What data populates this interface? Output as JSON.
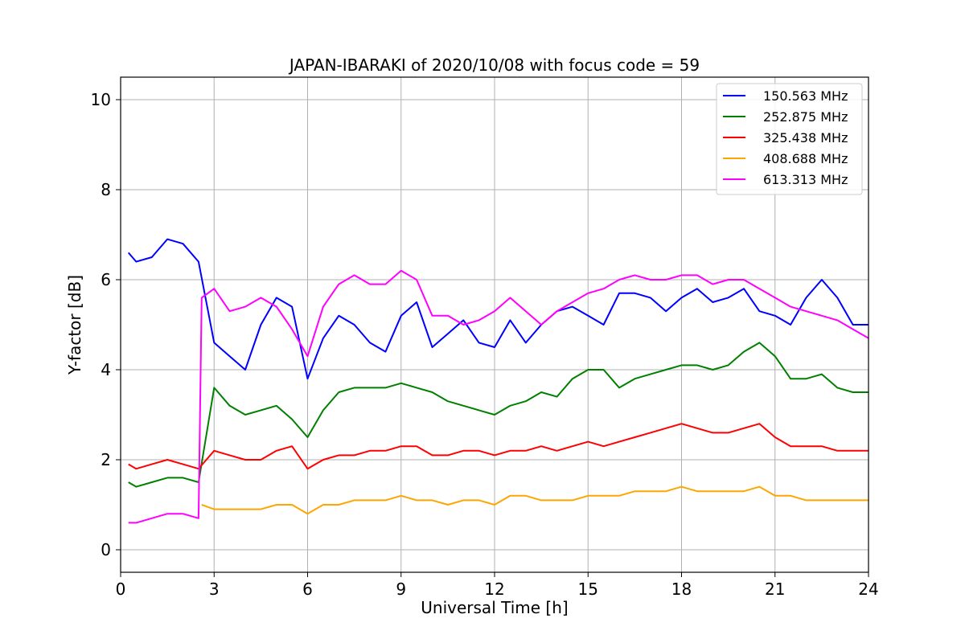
{
  "chart_data": {
    "type": "line",
    "title": "JAPAN-IBARAKI of 2020/10/08 with focus code = 59",
    "xlabel": "Universal Time [h]",
    "ylabel": "Y-factor [dB]",
    "xlim": [
      0,
      24
    ],
    "ylim": [
      -0.5,
      10.5
    ],
    "xticks": [
      0,
      3,
      6,
      9,
      12,
      15,
      18,
      21,
      24
    ],
    "yticks": [
      0,
      2,
      4,
      6,
      8,
      10
    ],
    "grid": true,
    "legend_position": "top-right",
    "series": [
      {
        "name": "150.563 MHz",
        "color": "#0000ff",
        "x": [
          0.25,
          0.5,
          1.0,
          1.5,
          2.0,
          2.5,
          3.0,
          3.5,
          4.0,
          4.5,
          5.0,
          5.5,
          6.0,
          6.5,
          7.0,
          7.5,
          8.0,
          8.5,
          9.0,
          9.5,
          10.0,
          10.5,
          11.0,
          11.5,
          12.0,
          12.5,
          13.0,
          13.5,
          14.0,
          14.5,
          15.0,
          15.5,
          16.0,
          16.5,
          17.0,
          17.5,
          18.0,
          18.5,
          19.0,
          19.5,
          20.0,
          20.5,
          21.0,
          21.5,
          22.0,
          22.5,
          23.0,
          23.5,
          24.0
        ],
        "values": [
          6.6,
          6.4,
          6.5,
          6.9,
          6.8,
          6.4,
          4.6,
          4.3,
          4.0,
          5.0,
          5.6,
          5.4,
          3.8,
          4.7,
          5.2,
          5.0,
          4.6,
          4.4,
          5.2,
          5.5,
          4.5,
          4.8,
          5.1,
          4.6,
          4.5,
          5.1,
          4.6,
          5.0,
          5.3,
          5.4,
          5.2,
          5.0,
          5.7,
          5.7,
          5.6,
          5.3,
          5.6,
          5.8,
          5.5,
          5.6,
          5.8,
          5.3,
          5.2,
          5.0,
          5.6,
          6.0,
          5.6,
          5.0,
          5.0
        ]
      },
      {
        "name": "252.875 MHz",
        "color": "#008000",
        "x": [
          0.25,
          0.5,
          1.0,
          1.5,
          2.0,
          2.5,
          3.0,
          3.5,
          4.0,
          4.5,
          5.0,
          5.5,
          6.0,
          6.5,
          7.0,
          7.5,
          8.0,
          8.5,
          9.0,
          9.5,
          10.0,
          10.5,
          11.0,
          11.5,
          12.0,
          12.5,
          13.0,
          13.5,
          14.0,
          14.5,
          15.0,
          15.5,
          16.0,
          16.5,
          17.0,
          17.5,
          18.0,
          18.5,
          19.0,
          19.5,
          20.0,
          20.5,
          21.0,
          21.5,
          22.0,
          22.5,
          23.0,
          23.5,
          24.0
        ],
        "values": [
          1.5,
          1.4,
          1.5,
          1.6,
          1.6,
          1.5,
          3.6,
          3.2,
          3.0,
          3.1,
          3.2,
          2.9,
          2.5,
          3.1,
          3.5,
          3.6,
          3.6,
          3.6,
          3.7,
          3.6,
          3.5,
          3.3,
          3.2,
          3.1,
          3.0,
          3.2,
          3.3,
          3.5,
          3.4,
          3.8,
          4.0,
          4.0,
          3.6,
          3.8,
          3.9,
          4.0,
          4.1,
          4.1,
          4.0,
          4.1,
          4.4,
          4.6,
          4.3,
          3.8,
          3.8,
          3.9,
          3.6,
          3.5,
          3.5
        ]
      },
      {
        "name": "325.438 MHz",
        "color": "#ff0000",
        "x": [
          0.25,
          0.5,
          1.0,
          1.5,
          2.0,
          2.5,
          3.0,
          3.5,
          4.0,
          4.5,
          5.0,
          5.5,
          6.0,
          6.5,
          7.0,
          7.5,
          8.0,
          8.5,
          9.0,
          9.5,
          10.0,
          10.5,
          11.0,
          11.5,
          12.0,
          12.5,
          13.0,
          13.5,
          14.0,
          14.5,
          15.0,
          15.5,
          16.0,
          16.5,
          17.0,
          17.5,
          18.0,
          18.5,
          19.0,
          19.5,
          20.0,
          20.5,
          21.0,
          21.5,
          22.0,
          22.5,
          23.0,
          23.5,
          24.0
        ],
        "values": [
          1.9,
          1.8,
          1.9,
          2.0,
          1.9,
          1.8,
          2.2,
          2.1,
          2.0,
          2.0,
          2.2,
          2.3,
          1.8,
          2.0,
          2.1,
          2.1,
          2.2,
          2.2,
          2.3,
          2.3,
          2.1,
          2.1,
          2.2,
          2.2,
          2.1,
          2.2,
          2.2,
          2.3,
          2.2,
          2.3,
          2.4,
          2.3,
          2.4,
          2.5,
          2.6,
          2.7,
          2.8,
          2.7,
          2.6,
          2.6,
          2.7,
          2.8,
          2.5,
          2.3,
          2.3,
          2.3,
          2.2,
          2.2,
          2.2
        ]
      },
      {
        "name": "408.688 MHz",
        "color": "#ffa500",
        "x": [
          2.6,
          3.0,
          3.5,
          4.0,
          4.5,
          5.0,
          5.5,
          6.0,
          6.5,
          7.0,
          7.5,
          8.0,
          8.5,
          9.0,
          9.5,
          10.0,
          10.5,
          11.0,
          11.5,
          12.0,
          12.5,
          13.0,
          13.5,
          14.0,
          14.5,
          15.0,
          15.5,
          16.0,
          16.5,
          17.0,
          17.5,
          18.0,
          18.5,
          19.0,
          19.5,
          20.0,
          20.5,
          21.0,
          21.5,
          22.0,
          22.5,
          23.0,
          23.5,
          24.0
        ],
        "values": [
          1.0,
          0.9,
          0.9,
          0.9,
          0.9,
          1.0,
          1.0,
          0.8,
          1.0,
          1.0,
          1.1,
          1.1,
          1.1,
          1.2,
          1.1,
          1.1,
          1.0,
          1.1,
          1.1,
          1.0,
          1.2,
          1.2,
          1.1,
          1.1,
          1.1,
          1.2,
          1.2,
          1.2,
          1.3,
          1.3,
          1.3,
          1.4,
          1.3,
          1.3,
          1.3,
          1.3,
          1.4,
          1.2,
          1.2,
          1.1,
          1.1,
          1.1,
          1.1,
          1.1
        ]
      },
      {
        "name": "613.313 MHz",
        "color": "#ff00ff",
        "x": [
          0.25,
          0.5,
          1.0,
          1.5,
          2.0,
          2.5,
          2.6,
          3.0,
          3.5,
          4.0,
          4.5,
          5.0,
          5.5,
          6.0,
          6.5,
          7.0,
          7.5,
          8.0,
          8.5,
          9.0,
          9.5,
          10.0,
          10.5,
          11.0,
          11.5,
          12.0,
          12.5,
          13.0,
          13.5,
          14.0,
          14.5,
          15.0,
          15.5,
          16.0,
          16.5,
          17.0,
          17.5,
          18.0,
          18.5,
          19.0,
          19.5,
          20.0,
          20.5,
          21.0,
          21.5,
          22.0,
          22.5,
          23.0,
          23.5,
          24.0
        ],
        "values": [
          0.6,
          0.6,
          0.7,
          0.8,
          0.8,
          0.7,
          5.6,
          5.8,
          5.3,
          5.4,
          5.6,
          5.4,
          4.9,
          4.3,
          5.4,
          5.9,
          6.1,
          5.9,
          5.9,
          6.2,
          6.0,
          5.2,
          5.2,
          5.0,
          5.1,
          5.3,
          5.6,
          5.3,
          5.0,
          5.3,
          5.5,
          5.7,
          5.8,
          6.0,
          6.1,
          6.0,
          6.0,
          6.1,
          6.1,
          5.9,
          6.0,
          6.0,
          5.8,
          5.6,
          5.4,
          5.3,
          5.2,
          5.1,
          4.9,
          4.7
        ]
      }
    ]
  }
}
